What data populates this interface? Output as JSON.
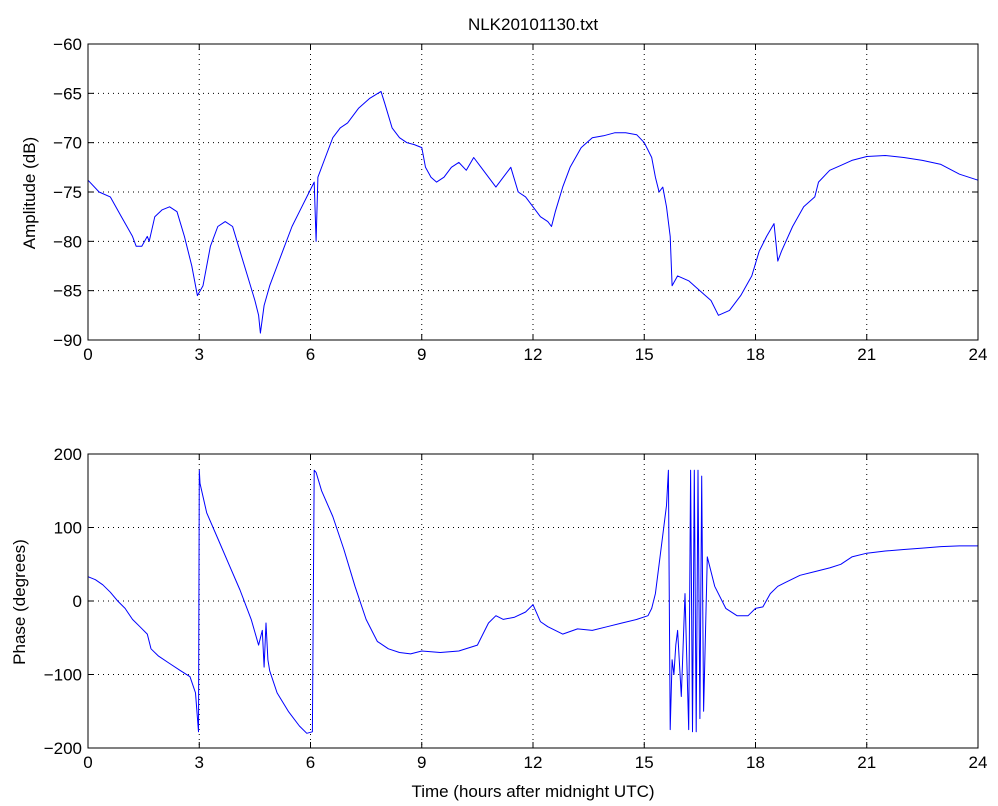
{
  "title": "NLK20101130.txt",
  "colors": {
    "series": "#0000ff",
    "axes": "#000000",
    "background": "#ffffff"
  },
  "chart_data": [
    {
      "type": "line",
      "title": "NLK20101130.txt",
      "xlabel": "",
      "ylabel": "Amplitude (dB)",
      "xlim": [
        0,
        24
      ],
      "ylim": [
        -90,
        -60
      ],
      "xticks": [
        0,
        3,
        6,
        9,
        12,
        15,
        18,
        21,
        24
      ],
      "yticks": [
        -90,
        -85,
        -80,
        -75,
        -70,
        -65,
        -60
      ],
      "xtick_labels": [
        "0",
        "3",
        "6",
        "9",
        "12",
        "15",
        "18",
        "21",
        "24"
      ],
      "ytick_labels": [
        "−90",
        "−85",
        "−80",
        "−75",
        "−70",
        "−65",
        "−60"
      ],
      "grid": true,
      "series": [
        {
          "x": [
            0,
            0.3,
            0.6,
            0.9,
            1.2,
            1.3,
            1.45,
            1.6,
            1.65,
            1.8,
            2.0,
            2.2,
            2.4,
            2.6,
            2.8,
            2.95,
            3.1,
            3.3,
            3.5,
            3.7,
            3.9,
            4.1,
            4.3,
            4.5,
            4.6,
            4.65,
            4.75,
            4.9,
            5.1,
            5.3,
            5.5,
            5.7,
            5.9,
            6.1,
            6.15,
            6.2,
            6.4,
            6.6,
            6.8,
            7.0,
            7.3,
            7.6,
            7.9,
            8.0,
            8.2,
            8.4,
            8.6,
            8.8,
            9.0,
            9.1,
            9.25,
            9.4,
            9.6,
            9.8,
            10.0,
            10.2,
            10.4,
            10.6,
            10.8,
            11.0,
            11.2,
            11.4,
            11.6,
            11.8,
            12.0,
            12.2,
            12.4,
            12.5,
            12.6,
            12.8,
            13.0,
            13.3,
            13.6,
            13.9,
            14.2,
            14.5,
            14.8,
            15.0,
            15.2,
            15.3,
            15.4,
            15.5,
            15.6,
            15.7,
            15.75,
            15.9,
            16.2,
            16.5,
            16.8,
            17.0,
            17.3,
            17.6,
            17.9,
            18.1,
            18.3,
            18.5,
            18.6,
            18.7,
            19.0,
            19.3,
            19.6,
            19.7,
            20.0,
            20.3,
            20.6,
            21.0,
            21.5,
            22.0,
            22.5,
            23.0,
            23.5,
            24.0
          ],
          "y": [
            -73.8,
            -75.0,
            -75.5,
            -77.5,
            -79.5,
            -80.5,
            -80.5,
            -79.5,
            -80.0,
            -77.5,
            -76.8,
            -76.5,
            -77.0,
            -79.5,
            -82.5,
            -85.5,
            -84.5,
            -80.5,
            -78.5,
            -78.0,
            -78.5,
            -81.0,
            -83.5,
            -86.0,
            -87.5,
            -89.3,
            -86.5,
            -84.5,
            -82.5,
            -80.5,
            -78.5,
            -77.0,
            -75.5,
            -74.0,
            -80.0,
            -73.5,
            -71.5,
            -69.5,
            -68.5,
            -68.0,
            -66.5,
            -65.5,
            -64.8,
            -66.0,
            -68.5,
            -69.5,
            -70.0,
            -70.2,
            -70.5,
            -72.5,
            -73.5,
            -74.0,
            -73.5,
            -72.5,
            -72.0,
            -72.8,
            -71.5,
            -72.5,
            -73.5,
            -74.5,
            -73.5,
            -72.5,
            -75.0,
            -75.5,
            -76.5,
            -77.5,
            -78.0,
            -78.5,
            -77.0,
            -74.5,
            -72.5,
            -70.5,
            -69.5,
            -69.3,
            -69.0,
            -69.0,
            -69.2,
            -70.0,
            -71.5,
            -73.5,
            -75.0,
            -74.5,
            -76.5,
            -79.5,
            -84.5,
            -83.5,
            -84.0,
            -85.0,
            -86.0,
            -87.5,
            -87.0,
            -85.5,
            -83.5,
            -81.0,
            -79.5,
            -78.2,
            -82.0,
            -81.0,
            -78.5,
            -76.5,
            -75.5,
            -74.0,
            -72.8,
            -72.3,
            -71.8,
            -71.4,
            -71.3,
            -71.5,
            -71.8,
            -72.2,
            -73.2,
            -73.8
          ]
        }
      ]
    },
    {
      "type": "line",
      "title": "",
      "xlabel": "Time (hours after midnight UTC)",
      "ylabel": "Phase (degrees)",
      "xlim": [
        0,
        24
      ],
      "ylim": [
        -200,
        200
      ],
      "xticks": [
        0,
        3,
        6,
        9,
        12,
        15,
        18,
        21,
        24
      ],
      "yticks": [
        -200,
        -100,
        0,
        100,
        200
      ],
      "xtick_labels": [
        "0",
        "3",
        "6",
        "9",
        "12",
        "15",
        "18",
        "21",
        "24"
      ],
      "ytick_labels": [
        "−200",
        "−100",
        "0",
        "100",
        "200"
      ],
      "grid": true,
      "series": [
        {
          "x": [
            0,
            0.2,
            0.4,
            0.6,
            0.8,
            1.0,
            1.2,
            1.4,
            1.6,
            1.7,
            1.9,
            2.2,
            2.5,
            2.75,
            2.9,
            2.98,
            3.0,
            3.02,
            3.2,
            3.5,
            3.8,
            4.1,
            4.4,
            4.6,
            4.7,
            4.75,
            4.8,
            4.85,
            4.9,
            5.1,
            5.4,
            5.7,
            5.9,
            6.05,
            6.1,
            6.15,
            6.3,
            6.6,
            6.9,
            7.2,
            7.5,
            7.8,
            8.1,
            8.4,
            8.7,
            9.0,
            9.5,
            10.0,
            10.5,
            10.8,
            11.0,
            11.2,
            11.5,
            11.8,
            12.0,
            12.2,
            12.4,
            12.8,
            13.2,
            13.6,
            14.0,
            14.4,
            14.8,
            15.1,
            15.2,
            15.3,
            15.4,
            15.5,
            15.6,
            15.65,
            15.7,
            15.75,
            15.8,
            15.85,
            15.9,
            16.0,
            16.1,
            16.2,
            16.25,
            16.3,
            16.35,
            16.4,
            16.45,
            16.5,
            16.55,
            16.6,
            16.7,
            16.9,
            17.2,
            17.5,
            17.8,
            18.0,
            18.2,
            18.4,
            18.6,
            18.8,
            19.2,
            19.6,
            20.0,
            20.3,
            20.6,
            21.0,
            21.5,
            22.0,
            22.5,
            23.0,
            23.5,
            24.0
          ],
          "y": [
            33,
            29,
            22,
            12,
            0,
            -10,
            -25,
            -35,
            -45,
            -65,
            -75,
            -85,
            -95,
            -103,
            -125,
            -178,
            178,
            160,
            120,
            85,
            50,
            15,
            -25,
            -60,
            -40,
            -90,
            -30,
            -80,
            -95,
            -125,
            -150,
            -170,
            -180,
            -178,
            178,
            175,
            150,
            115,
            70,
            20,
            -25,
            -55,
            -65,
            -70,
            -72,
            -68,
            -70,
            -68,
            -60,
            -30,
            -20,
            -25,
            -22,
            -15,
            -5,
            -28,
            -35,
            -45,
            -38,
            -40,
            -35,
            -30,
            -25,
            -20,
            -10,
            10,
            50,
            90,
            130,
            178,
            -175,
            -80,
            -100,
            -60,
            -40,
            -130,
            10,
            -175,
            178,
            -178,
            178,
            -178,
            178,
            -160,
            170,
            -150,
            60,
            20,
            -10,
            -20,
            -20,
            -10,
            -8,
            10,
            20,
            25,
            35,
            40,
            45,
            50,
            60,
            65,
            68,
            70,
            72,
            74,
            75,
            75
          ]
        }
      ]
    }
  ]
}
